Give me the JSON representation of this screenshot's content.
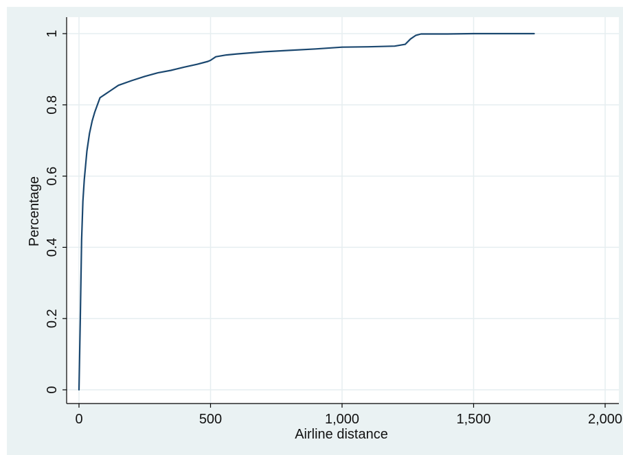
{
  "chart_data": {
    "type": "line",
    "title": "",
    "xlabel": "Airline distance",
    "ylabel": "Percentage",
    "xlim": [
      0,
      2000
    ],
    "ylim": [
      0,
      1
    ],
    "x_ticks": [
      0,
      500,
      1000,
      1500,
      2000
    ],
    "x_tick_labels": [
      "0",
      "500",
      "1,000",
      "1,500",
      "2,000"
    ],
    "y_ticks": [
      0,
      0.2,
      0.4,
      0.6,
      0.8,
      1
    ],
    "y_tick_labels": [
      "0",
      "0.2",
      "0.4",
      "0.6",
      "0.8",
      "1"
    ],
    "grid": true,
    "legend": "none",
    "series": [
      {
        "x": [
          0,
          5,
          10,
          15,
          20,
          30,
          40,
          50,
          60,
          70,
          80,
          100,
          120,
          150,
          200,
          250,
          300,
          350,
          400,
          450,
          490,
          500,
          520,
          560,
          600,
          700,
          800,
          900,
          1000,
          1100,
          1200,
          1240,
          1260,
          1280,
          1300,
          1400,
          1500,
          1600,
          1730
        ],
        "y": [
          0,
          0.2,
          0.42,
          0.53,
          0.59,
          0.67,
          0.72,
          0.755,
          0.78,
          0.8,
          0.82,
          0.83,
          0.84,
          0.855,
          0.868,
          0.88,
          0.89,
          0.897,
          0.906,
          0.914,
          0.922,
          0.925,
          0.935,
          0.94,
          0.943,
          0.949,
          0.953,
          0.957,
          0.962,
          0.963,
          0.965,
          0.97,
          0.985,
          0.995,
          0.999,
          0.999,
          1.0,
          1.0,
          1.0
        ]
      }
    ]
  },
  "colors": {
    "outer_background": "#eaf2f3",
    "plot_background": "#ffffff",
    "grid": "#e6eef0",
    "line": "#1a476f",
    "axis": "#000000"
  }
}
